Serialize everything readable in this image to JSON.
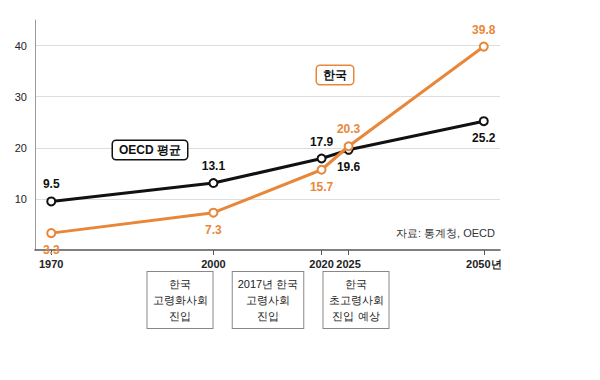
{
  "chart_data": {
    "type": "line",
    "x": [
      1970,
      2000,
      2020,
      2025,
      2050
    ],
    "series": [
      {
        "name": "OECD 평균",
        "color": "#111111",
        "values": [
          9.5,
          13.1,
          17.9,
          19.6,
          25.2
        ]
      },
      {
        "name": "한국",
        "color": "#e8873a",
        "values": [
          3.3,
          7.3,
          15.7,
          20.3,
          39.8
        ]
      }
    ],
    "xlim": [
      1967,
      2053
    ],
    "xticks": [
      1970,
      2000,
      2020,
      2025,
      {
        "value": 2050,
        "label": "2050년"
      }
    ],
    "ylim": [
      0,
      45
    ],
    "yticks": [
      10,
      20,
      30,
      40
    ],
    "grid": true,
    "data_labels": true,
    "marker": "circle",
    "annotations": [
      "한국\n고령화사회\n진입",
      "2017년 한국\n고령사회\n진입",
      "한국\n초고령사회\n진입 예상"
    ],
    "source": "자료: 통계청, OECD"
  }
}
